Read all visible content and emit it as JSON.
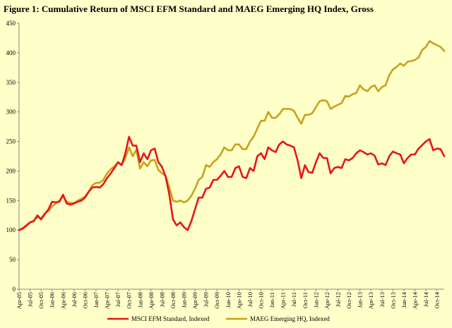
{
  "chart_data": {
    "type": "line",
    "title": "Figure 1: Cumulative  Return of MSCI EFM Standard  and  MAEG Emerging  HQ Index, Gross",
    "ylim": [
      0,
      450
    ],
    "yticks": [
      0,
      50,
      100,
      150,
      200,
      250,
      300,
      350,
      400,
      450
    ],
    "grid": false,
    "legend_position": "bottom",
    "x_start": "2005-04",
    "x_end": "2014-12",
    "x_tick_labels": [
      "Apr-05",
      "Jul-05",
      "Oct-05",
      "Jan-06",
      "Apr-06",
      "Jul-06",
      "Oct-06",
      "Jan-07",
      "Apr-07",
      "Jul-07",
      "Oct-07",
      "Jan-08",
      "Apr-08",
      "Jul-08",
      "Oct-08",
      "Jan-09",
      "Apr-09",
      "Jul-09",
      "Oct-09",
      "Jan-10",
      "Apr-10",
      "Jul-10",
      "Oct-10",
      "Jan-11",
      "Apr-11",
      "Jul-11",
      "Oct-11",
      "Jan-12",
      "Apr-12",
      "Jul-12",
      "Oct-12",
      "Jan-13",
      "Apr-13",
      "Jul-13",
      "Oct-13",
      "Jan-14",
      "Apr-14",
      "Jul-14",
      "Oct-14"
    ],
    "series": [
      {
        "name": "MSCI EFM Standard, Indexed",
        "color": "#E8141C",
        "values": [
          100,
          103,
          108,
          113,
          115,
          125,
          118,
          127,
          135,
          148,
          147,
          148,
          160,
          145,
          143,
          145,
          148,
          150,
          155,
          165,
          172,
          173,
          172,
          178,
          188,
          196,
          205,
          215,
          210,
          230,
          258,
          243,
          243,
          215,
          230,
          220,
          235,
          238,
          215,
          207,
          190,
          160,
          118,
          108,
          113,
          105,
          100,
          115,
          135,
          155,
          155,
          170,
          172,
          185,
          185,
          192,
          200,
          190,
          190,
          205,
          208,
          190,
          188,
          205,
          200,
          225,
          230,
          220,
          240,
          235,
          232,
          245,
          250,
          245,
          243,
          240,
          218,
          188,
          210,
          198,
          197,
          215,
          230,
          222,
          222,
          196,
          205,
          207,
          205,
          220,
          218,
          222,
          230,
          235,
          232,
          228,
          230,
          226,
          211,
          213,
          210,
          225,
          233,
          230,
          228,
          213,
          222,
          228,
          228,
          238,
          244,
          250,
          254,
          235,
          238,
          237,
          225
        ]
      },
      {
        "name": "MAEG Emerging HQ, Indexed",
        "color": "#C8A21A",
        "values": [
          100,
          102,
          107,
          113,
          116,
          122,
          120,
          128,
          132,
          140,
          145,
          150,
          157,
          148,
          146,
          146,
          150,
          153,
          157,
          165,
          176,
          180,
          180,
          185,
          196,
          203,
          208,
          214,
          210,
          222,
          240,
          225,
          236,
          204,
          215,
          208,
          218,
          219,
          202,
          196,
          192,
          172,
          150,
          148,
          150,
          147,
          150,
          158,
          170,
          185,
          190,
          210,
          207,
          215,
          220,
          228,
          240,
          235,
          235,
          245,
          245,
          237,
          237,
          250,
          258,
          272,
          285,
          285,
          300,
          290,
          290,
          296,
          305,
          305,
          305,
          302,
          290,
          280,
          295,
          295,
          298,
          308,
          318,
          320,
          318,
          305,
          309,
          312,
          315,
          327,
          326,
          330,
          332,
          345,
          338,
          335,
          342,
          345,
          335,
          342,
          345,
          362,
          372,
          376,
          382,
          378,
          385,
          386,
          388,
          392,
          405,
          410,
          420,
          416,
          413,
          410,
          403
        ]
      }
    ]
  }
}
